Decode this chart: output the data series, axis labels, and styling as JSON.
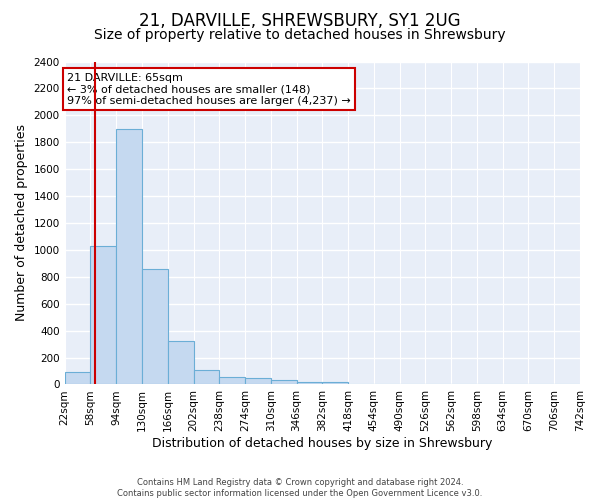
{
  "title": "21, DARVILLE, SHREWSBURY, SY1 2UG",
  "subtitle": "Size of property relative to detached houses in Shrewsbury",
  "xlabel": "Distribution of detached houses by size in Shrewsbury",
  "ylabel": "Number of detached properties",
  "bin_edges": [
    22,
    58,
    94,
    130,
    166,
    202,
    238,
    274,
    310,
    346,
    382,
    418,
    454,
    490,
    526,
    562,
    598,
    634,
    670,
    706,
    742
  ],
  "bar_heights": [
    90,
    1030,
    1900,
    860,
    320,
    110,
    55,
    50,
    35,
    20,
    20,
    5,
    5,
    3,
    2,
    2,
    1,
    1,
    0,
    0
  ],
  "bar_color": "#c5d9f0",
  "bar_edge_color": "#6baed6",
  "fig_bg_color": "#ffffff",
  "plot_bg_color": "#e8eef8",
  "grid_color": "#ffffff",
  "property_line_x": 65,
  "property_line_color": "#cc0000",
  "annotation_text": "21 DARVILLE: 65sqm\n← 3% of detached houses are smaller (148)\n97% of semi-detached houses are larger (4,237) →",
  "annotation_box_facecolor": "#ffffff",
  "annotation_box_edgecolor": "#cc0000",
  "ylim": [
    0,
    2400
  ],
  "yticks": [
    0,
    200,
    400,
    600,
    800,
    1000,
    1200,
    1400,
    1600,
    1800,
    2000,
    2200,
    2400
  ],
  "footer_text": "Contains HM Land Registry data © Crown copyright and database right 2024.\nContains public sector information licensed under the Open Government Licence v3.0.",
  "title_fontsize": 12,
  "subtitle_fontsize": 10,
  "axis_label_fontsize": 9,
  "tick_fontsize": 7.5,
  "footer_fontsize": 6,
  "annotation_fontsize": 8
}
